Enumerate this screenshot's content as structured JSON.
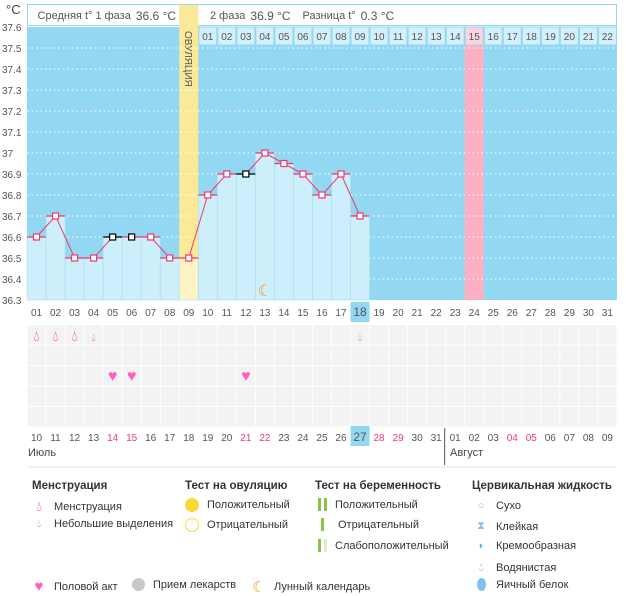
{
  "header": {
    "unit": "°C",
    "phase1_label": "Средняя t° 1 фаза",
    "phase1_value": "36.6 °C",
    "phase2_label": "2 фаза",
    "phase2_value": "36.9 °C",
    "diff_label": "Разница t°",
    "diff_value": "0.3 °C",
    "ovulation_label": "ОВУЛЯЦИЯ"
  },
  "chart_data": {
    "type": "bar",
    "ylim": [
      36.3,
      37.6
    ],
    "yticks": [
      "37.6",
      "37.5",
      "37.4",
      "37.3",
      "37.2",
      "37.1",
      "37",
      "36.9",
      "36.8",
      "36.7",
      "36.6",
      "36.5",
      "36.4",
      "36.3"
    ],
    "cycle_days": [
      "01",
      "02",
      "03",
      "04",
      "05",
      "06",
      "07",
      "08",
      "09",
      "10",
      "11",
      "12",
      "13",
      "14",
      "15",
      "16",
      "17",
      "18",
      "19",
      "20",
      "21",
      "22",
      "23",
      "24",
      "25",
      "26",
      "27",
      "28",
      "29",
      "30",
      "31"
    ],
    "temperatures": [
      36.6,
      36.7,
      36.5,
      36.5,
      36.6,
      36.6,
      36.6,
      36.5,
      36.5,
      36.8,
      36.9,
      36.9,
      37.0,
      36.95,
      36.9,
      36.8,
      36.9,
      36.7
    ],
    "highlighted_marker_days": [
      "05",
      "06",
      "12"
    ],
    "next_cycle_days": [
      "01",
      "02",
      "03",
      "04",
      "05",
      "06",
      "07",
      "08",
      "09",
      "10",
      "11",
      "12",
      "13",
      "14",
      "15",
      "16",
      "17",
      "18",
      "19",
      "20",
      "21",
      "22"
    ],
    "ovulation_day": "09",
    "current_day": "18",
    "predicted_day": "24",
    "moon_day": "13",
    "colors": {
      "background": "#92d8f2",
      "bar": "#cdeefb",
      "ovulation": "#fbe99a",
      "predicted": "#fdb0c4",
      "line": "#ee3a6a"
    }
  },
  "symbols": {
    "menstruation": [
      "01",
      "02",
      "03"
    ],
    "spotting": [
      "04",
      "18"
    ],
    "intercourse": [
      "05",
      "06",
      "12"
    ]
  },
  "dates": [
    "10",
    "11",
    "12",
    "13",
    "14",
    "15",
    "16",
    "17",
    "18",
    "19",
    "20",
    "21",
    "22",
    "23",
    "24",
    "25",
    "26",
    "27",
    "28",
    "29",
    "30",
    "31",
    "01",
    "02",
    "03",
    "04",
    "05",
    "06",
    "07",
    "08",
    "09"
  ],
  "weekend_dates_idx": [
    4,
    5,
    11,
    12,
    18,
    19,
    25,
    26
  ],
  "months": {
    "first": "Июль",
    "second": "Август"
  },
  "legend": {
    "menstruation": {
      "title": "Менструация",
      "items": [
        "Менструация",
        "Небольшие выделения"
      ]
    },
    "ovulation_test": {
      "title": "Тест на овуляцию",
      "items": [
        "Положительный",
        "Отрицательный"
      ]
    },
    "pregnancy_test": {
      "title": "Тест на беременность",
      "items": [
        "Положительный",
        "Отрицательный",
        "Слабоположительный"
      ]
    },
    "cervical": {
      "title": "Цервикальная жидкость",
      "items": [
        "Сухо",
        "Клейкая",
        "Кремообразная",
        "Водянистая",
        "Яичный белок"
      ]
    },
    "other": [
      "Половой акт",
      "Прием лекарств",
      "Лунный календарь"
    ]
  }
}
